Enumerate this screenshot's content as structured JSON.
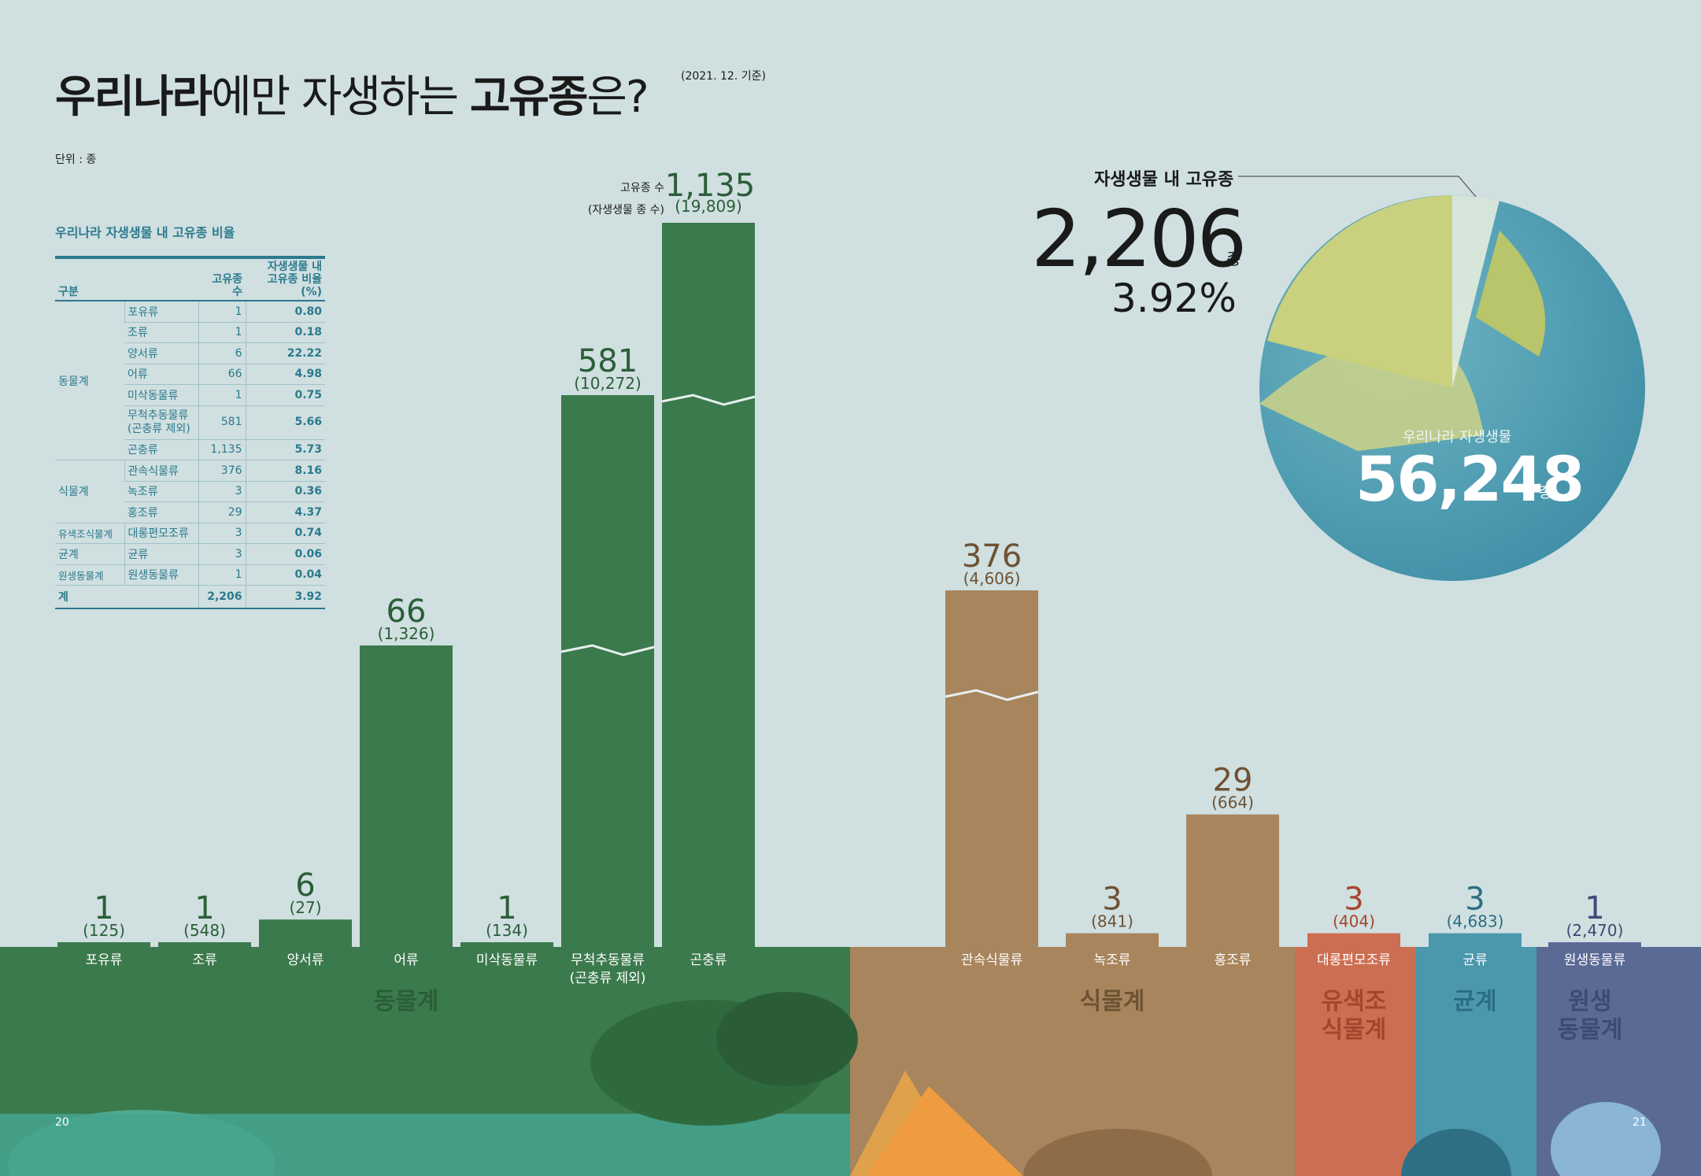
{
  "title": {
    "part1": "우리나라",
    "part2": "에만 자생하는 ",
    "part3": "고유종",
    "part4": "은?"
  },
  "basis_date": "(2021. 12. 기준)",
  "unit": "단위 : 종",
  "table": {
    "title": "우리나라 자생생물 내 고유종 비율",
    "headers": [
      "구분",
      "고유종 수",
      "자생생물 내\n고유종 비율(%)"
    ],
    "groups": [
      {
        "name": "동물계",
        "rows": [
          [
            "포유류",
            "1",
            "0.80"
          ],
          [
            "조류",
            "1",
            "0.18"
          ],
          [
            "양서류",
            "6",
            "22.22"
          ],
          [
            "어류",
            "66",
            "4.98"
          ],
          [
            "미삭동물류",
            "1",
            "0.75"
          ],
          [
            "무척추동물류\n(곤충류 제외)",
            "581",
            "5.66"
          ],
          [
            "곤충류",
            "1,135",
            "5.73"
          ]
        ]
      },
      {
        "name": "식물계",
        "rows": [
          [
            "관속식물류",
            "376",
            "8.16"
          ],
          [
            "녹조류",
            "3",
            "0.36"
          ],
          [
            "홍조류",
            "29",
            "4.37"
          ]
        ]
      },
      {
        "name": "유색조식물계",
        "rows": [
          [
            "대롱편모조류",
            "3",
            "0.74"
          ]
        ]
      },
      {
        "name": "균계",
        "rows": [
          [
            "균류",
            "3",
            "0.06"
          ]
        ]
      },
      {
        "name": "원생동물계",
        "rows": [
          [
            "원생동물류",
            "1",
            "0.04"
          ]
        ]
      }
    ],
    "total": [
      "계",
      "2,206",
      "3.92"
    ]
  },
  "annotation": {
    "endemic_label": "고유종 수",
    "native_label": "(자생생물 종 수)"
  },
  "callout": {
    "label": "자생생물 내 고유종",
    "number": "2,206",
    "unit": "종",
    "percent": "3.92%"
  },
  "globe": {
    "label": "우리나라 자생생물",
    "number": "56,248",
    "unit": "종"
  },
  "kingdoms": [
    {
      "name": "동물계",
      "color": "#3b7a4c",
      "text_color": "#2a5e38"
    },
    {
      "name": "식물계",
      "color": "#a8855c",
      "text_color": "#6e5233"
    },
    {
      "name": "유색조\n식물계",
      "color": "#cc6e52",
      "text_color": "#a5452e"
    },
    {
      "name": "균계",
      "color": "#4b97ac",
      "text_color": "#2a6e82"
    },
    {
      "name": "원생\n동물계",
      "color": "#5a6a95",
      "text_color": "#3c4a74"
    }
  ],
  "page_numbers": {
    "left": "20",
    "right": "21"
  },
  "chart_data": {
    "type": "bar",
    "categories": [
      "포유류",
      "조류",
      "양서류",
      "어류",
      "미삭동물류",
      "무척추동물류\n(곤충류 제외)",
      "곤충류",
      "관속식물류",
      "녹조류",
      "홍조류",
      "대롱편모조류",
      "균류",
      "원생동물류"
    ],
    "kingdom_of_category": [
      0,
      0,
      0,
      0,
      0,
      0,
      0,
      1,
      1,
      1,
      2,
      3,
      4
    ],
    "series": [
      {
        "name": "고유종 수",
        "values": [
          1,
          1,
          6,
          66,
          1,
          581,
          1135,
          376,
          3,
          29,
          3,
          3,
          1
        ],
        "labels": [
          "1",
          "1",
          "6",
          "66",
          "1",
          "581",
          "1,135",
          "376",
          "3",
          "29",
          "3",
          "3",
          "1"
        ]
      },
      {
        "name": "자생생물 종 수",
        "values": [
          125,
          548,
          27,
          1326,
          134,
          10272,
          19809,
          4606,
          841,
          664,
          404,
          4683,
          2470
        ],
        "labels": [
          "(125)",
          "(548)",
          "(27)",
          "(1,326)",
          "(134)",
          "(10,272)",
          "(19,809)",
          "(4,606)",
          "(841)",
          "(664)",
          "(404)",
          "(4,683)",
          "(2,470)"
        ]
      }
    ],
    "broken_axis": [
      "무척추동물류\n(곤충류 제외)",
      "곤충류",
      "관속식물류"
    ],
    "pie": {
      "total": 56248,
      "endemic": 2206,
      "percent": 3.92
    },
    "title": "",
    "xlabel": "",
    "ylabel": ""
  }
}
